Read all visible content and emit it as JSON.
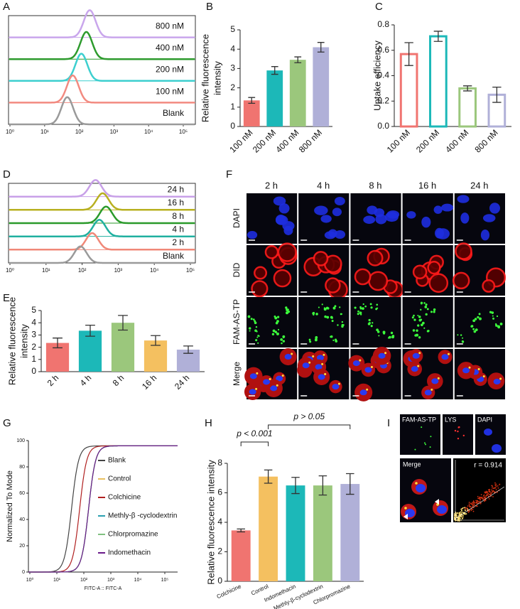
{
  "chart_data": [
    {
      "type": "flow",
      "label": "A",
      "xlim": [
        1,
        100000
      ],
      "log": true,
      "xticks": [
        {
          "value": 1,
          "label": "10⁰"
        },
        {
          "value": 10,
          "label": "10¹"
        },
        {
          "value": 100,
          "label": "10²"
        },
        {
          "value": 1000,
          "label": "10³"
        },
        {
          "value": 10000,
          "label": "10⁴"
        },
        {
          "value": 100000,
          "label": "10⁵"
        }
      ],
      "series": [
        {
          "name": "800 nM",
          "color": "#c9a6ec",
          "peak": 200
        },
        {
          "name": "400 nM",
          "color": "#2e9b2e",
          "peak": 160
        },
        {
          "name": "200 nM",
          "color": "#3dcfcf",
          "peak": 115
        },
        {
          "name": "100 nM",
          "color": "#f28a80",
          "peak": 65
        },
        {
          "name": "Blank",
          "color": "#9a9a9a",
          "peak": 45
        }
      ]
    },
    {
      "type": "bar",
      "label": "B",
      "ylabel": [
        "Relative fluorescence",
        "intensity"
      ],
      "categories": [
        "100 nM",
        "200 nM",
        "400 nM",
        "800 nM"
      ],
      "values": [
        1.35,
        2.9,
        3.45,
        4.1
      ],
      "errors": [
        0.15,
        0.2,
        0.15,
        0.25
      ],
      "colors": [
        "#f07470",
        "#1cb8b8",
        "#9bc77c",
        "#b0b0d8"
      ],
      "ylim": [
        0,
        5
      ],
      "yticks": [
        0,
        1,
        2,
        3,
        4,
        5
      ]
    },
    {
      "type": "bar",
      "label": "C",
      "hollow": true,
      "ylabel": [
        "Uptake efficiency"
      ],
      "categories": [
        "100 nM",
        "200 nM",
        "400 nM",
        "800 nM"
      ],
      "values": [
        0.57,
        0.71,
        0.3,
        0.25
      ],
      "errors": [
        0.09,
        0.04,
        0.02,
        0.06
      ],
      "colors": [
        "#f07470",
        "#1cb8b8",
        "#9bc77c",
        "#b0b0d8"
      ],
      "ylim": [
        0,
        0.8
      ],
      "yticks": [
        {
          "value": 0,
          "label": "0.0"
        },
        0.2,
        0.4,
        0.6,
        0.8
      ]
    },
    {
      "type": "flow",
      "label": "D",
      "xlim": [
        1,
        100000
      ],
      "log": true,
      "xticks": [
        {
          "value": 1,
          "label": "10⁰"
        },
        {
          "value": 10,
          "label": "10¹"
        },
        {
          "value": 100,
          "label": "10²"
        },
        {
          "value": 1000,
          "label": "10³"
        },
        {
          "value": 10000,
          "label": "10⁴"
        },
        {
          "value": 100000,
          "label": "10⁵"
        }
      ],
      "series": [
        {
          "name": "24 h",
          "color": "#c8a0e8",
          "peak": 235
        },
        {
          "name": "16 h",
          "color": "#b8b020",
          "peak": 370
        },
        {
          "name": "8 h",
          "color": "#2a9a2a",
          "peak": 460
        },
        {
          "name": "4 h",
          "color": "#20b0a0",
          "peak": 300
        },
        {
          "name": "2 h",
          "color": "#f08878",
          "peak": 190
        },
        {
          "name": "Blank",
          "color": "#9a9a9a",
          "peak": 90
        }
      ]
    },
    {
      "type": "bar",
      "label": "E",
      "ylabel": [
        "Relative fluorescence",
        "intensity"
      ],
      "categories": [
        "2 h",
        "4 h",
        "8 h",
        "16 h",
        "24 h"
      ],
      "values": [
        2.35,
        3.35,
        4.0,
        2.55,
        1.8
      ],
      "errors": [
        0.4,
        0.45,
        0.6,
        0.4,
        0.3
      ],
      "colors": [
        "#f07470",
        "#1cb8b8",
        "#9bc77c",
        "#f4c060",
        "#b0b0d8"
      ],
      "ylim": [
        0,
        5
      ],
      "yticks": [
        0,
        1,
        2,
        3,
        4,
        5
      ]
    },
    {
      "type": "cdf",
      "label": "G",
      "xlabel": "FITC-A :: FITC-A",
      "ylabel": "Normalized To Mode",
      "xlim": [
        1,
        100000
      ],
      "log": true,
      "xticks": [
        {
          "value": 1,
          "label": "10⁰"
        },
        {
          "value": 10,
          "label": "10¹"
        },
        {
          "value": 100,
          "label": "10²"
        },
        {
          "value": 1000,
          "label": "10³"
        },
        {
          "value": 10000,
          "label": "10⁴"
        },
        {
          "value": 100000,
          "label": "10⁵"
        }
      ],
      "ylim": [
        0,
        100
      ],
      "yticks": [
        0,
        20,
        40,
        60,
        80,
        100
      ],
      "series": [
        {
          "name": "Blank",
          "color": "#444444",
          "midpoint": 35
        },
        {
          "name": "Control",
          "color": "#e8c060",
          "midpoint": 150
        },
        {
          "name": "Colchicine",
          "color": "#b02020",
          "midpoint": 70
        },
        {
          "name": "Methly-β -cyclodextrin",
          "color": "#2aa0b0",
          "midpoint": 150
        },
        {
          "name": "Chlorpromazine",
          "color": "#80c080",
          "midpoint": 150
        },
        {
          "name": "Indomethacin",
          "color": "#6a1a8a",
          "midpoint": 150
        }
      ]
    },
    {
      "type": "bar",
      "label": "H",
      "ylabel": [
        "Relative fluorescence intensity"
      ],
      "categories": [
        "Colchicine",
        "Control",
        "Indomethacin",
        "Methly-β-cyclodextrin",
        "Chlorpromazine"
      ],
      "values": [
        3.45,
        7.1,
        6.5,
        6.5,
        6.6
      ],
      "errors": [
        0.1,
        0.45,
        0.55,
        0.65,
        0.7
      ],
      "colors": [
        "#f07470",
        "#f4c060",
        "#1cb8b8",
        "#9bc77c",
        "#b0b0d8"
      ],
      "ylim": [
        0,
        8
      ],
      "yticks": [
        0,
        2,
        4,
        6,
        8
      ],
      "annotations": [
        "p < 0.001",
        "p > 0.05"
      ]
    }
  ],
  "images": [
    {
      "label": "F",
      "columns": [
        "2 h",
        "4 h",
        "8 h",
        "16 h",
        "24 h"
      ],
      "rows": [
        "DAPI",
        "DID",
        "FAM-AS-TP",
        "Merge"
      ]
    },
    {
      "label": "I",
      "panels": [
        "FAM-AS-TP",
        "LYS",
        "DAPI",
        "Merge"
      ],
      "annotation": "r = 0.914"
    }
  ]
}
